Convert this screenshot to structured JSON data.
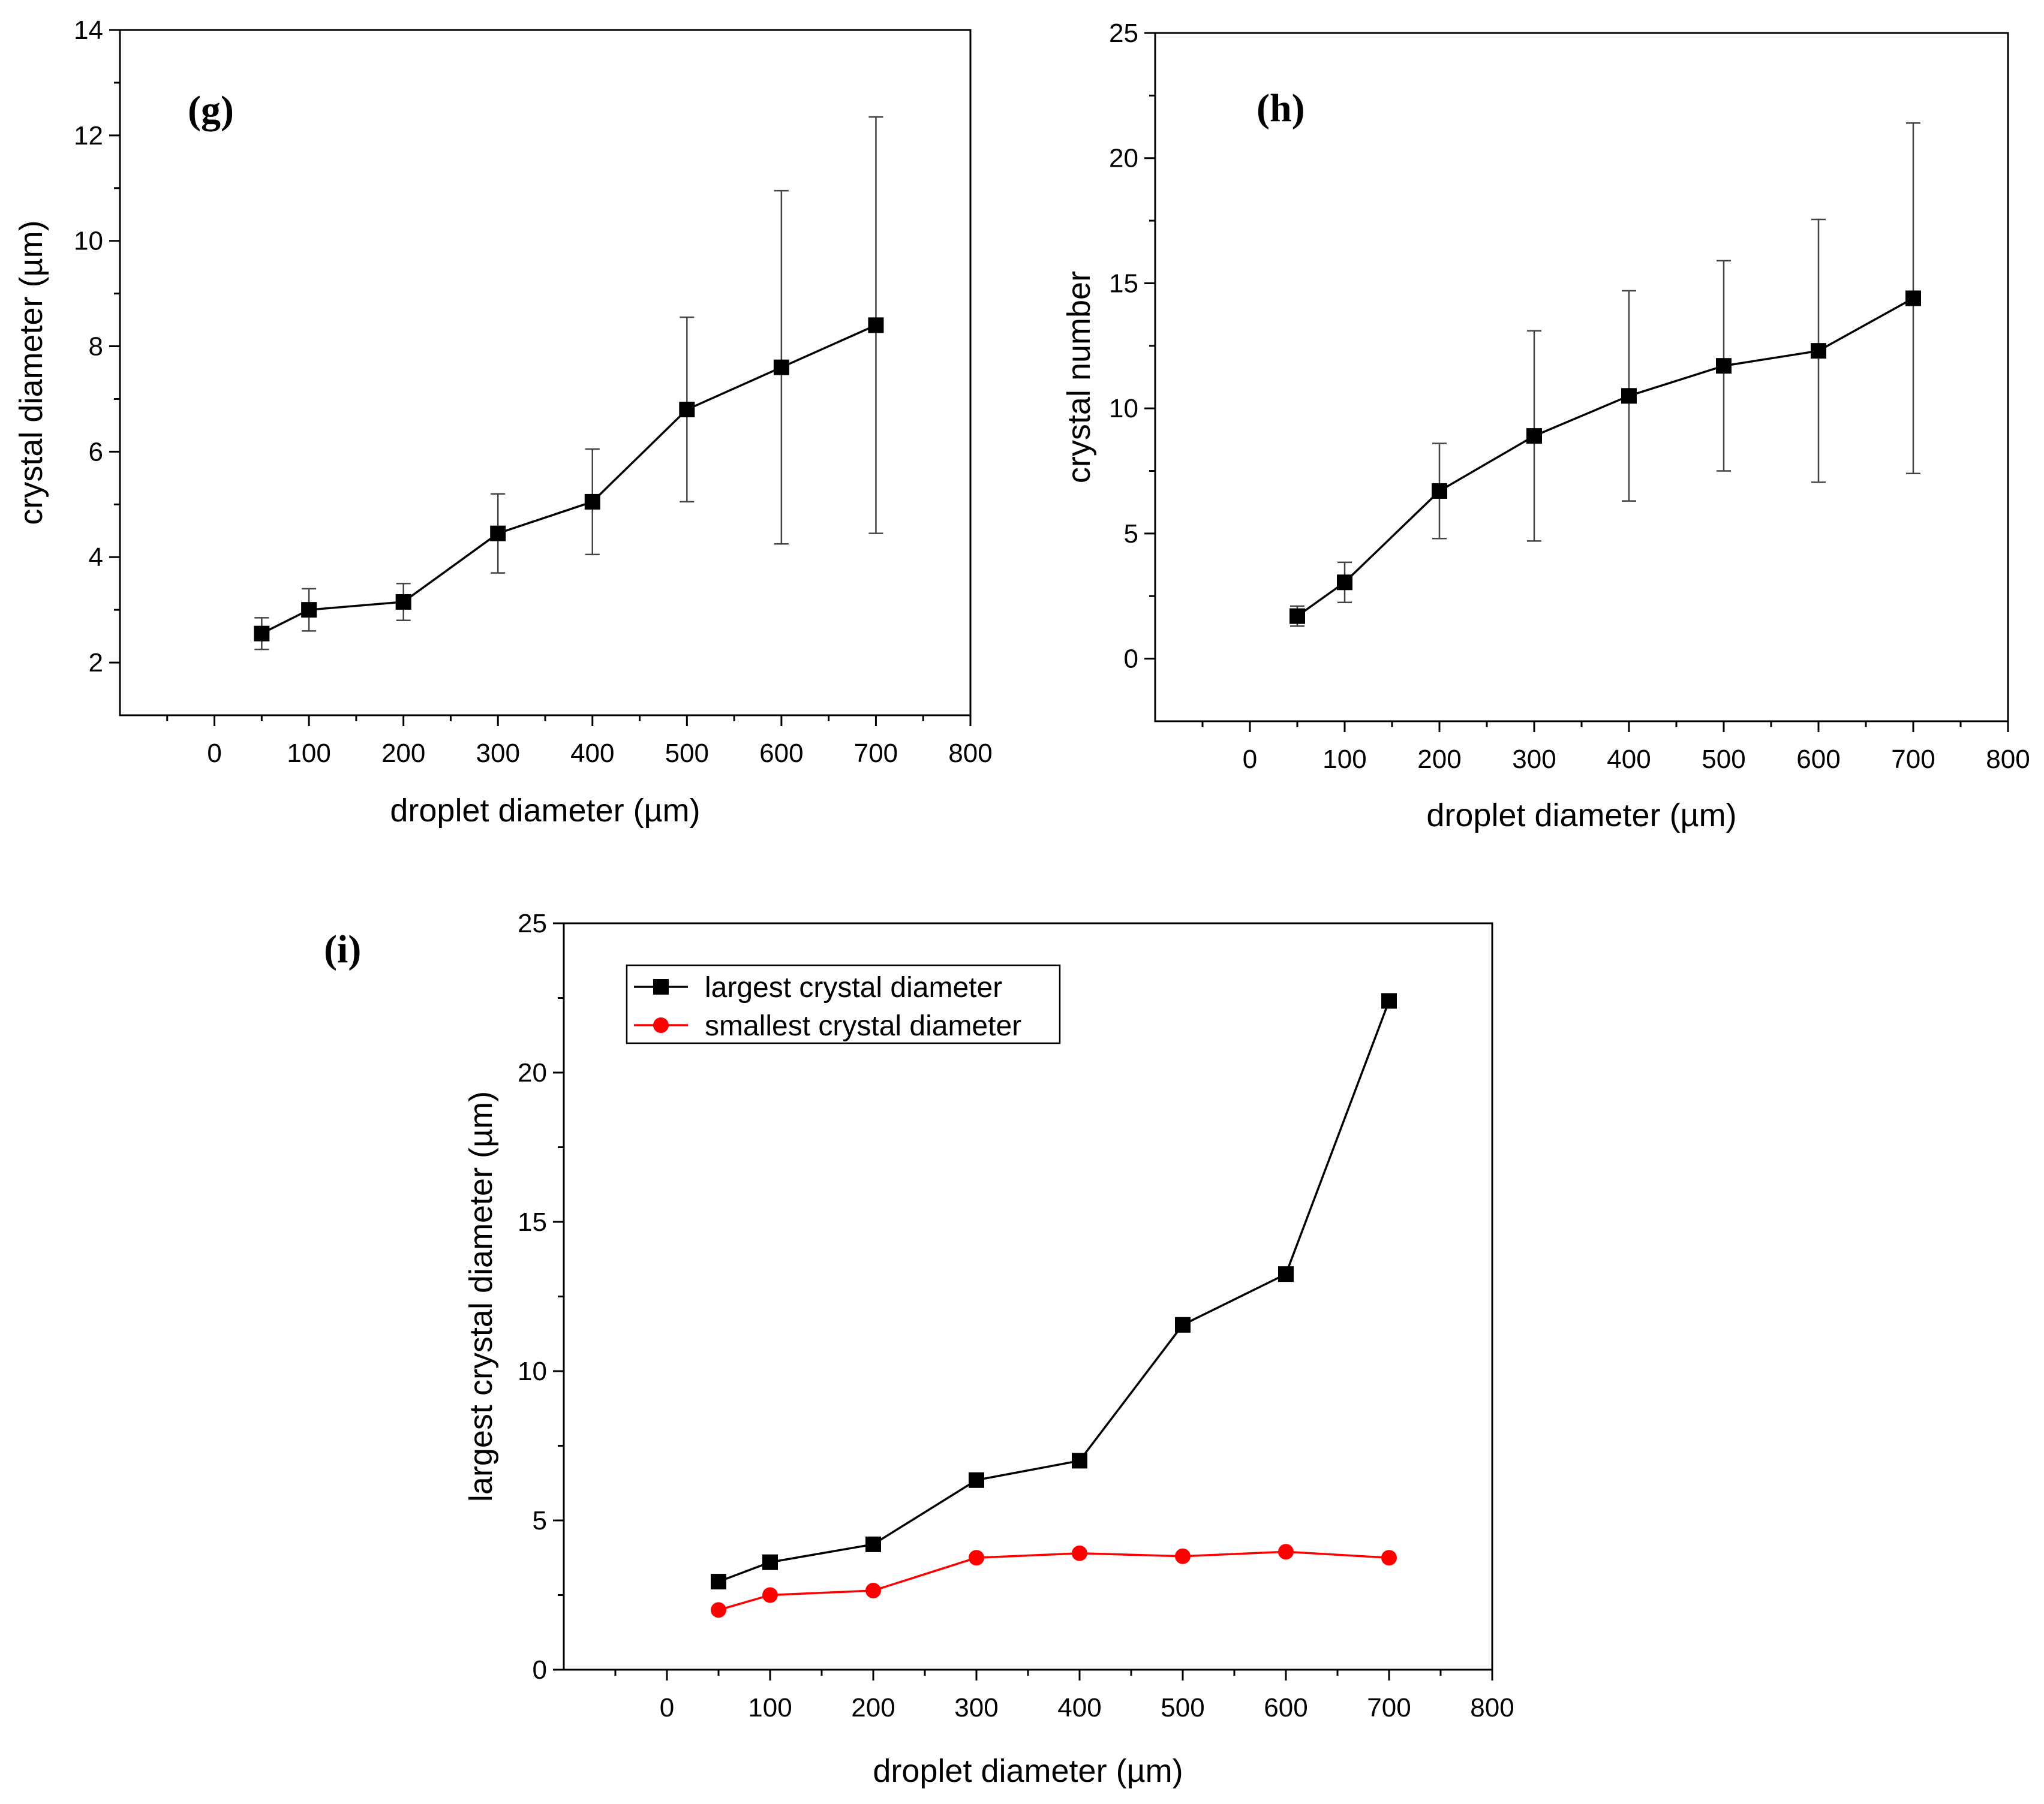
{
  "chart_data": [
    {
      "type": "line",
      "panel_label": "(g)",
      "xlabel": "droplet diameter (µm)",
      "ylabel": "crystal diameter (µm)",
      "xlim": [
        -100,
        800
      ],
      "ylim": [
        1,
        14
      ],
      "xticks": [
        "0",
        "100",
        "200",
        "300",
        "400",
        "500",
        "600",
        "700",
        "800"
      ],
      "yticks": [
        "2",
        "4",
        "6",
        "8",
        "10",
        "12",
        "14"
      ],
      "grid": false,
      "series": [
        {
          "marker": "square",
          "color": "#000000",
          "x": [
            50,
            100,
            200,
            300,
            400,
            500,
            600,
            700
          ],
          "y": [
            2.55,
            3.0,
            3.15,
            4.45,
            5.05,
            6.8,
            7.6,
            8.4
          ],
          "error": [
            0.3,
            0.4,
            0.35,
            0.75,
            1.0,
            1.75,
            3.35,
            3.95
          ]
        }
      ]
    },
    {
      "type": "line",
      "panel_label": "(h)",
      "xlabel": "droplet diameter (µm)",
      "ylabel": "crystal number",
      "xlim": [
        -100,
        800
      ],
      "ylim": [
        -2.5,
        25
      ],
      "xticks": [
        "0",
        "100",
        "200",
        "300",
        "400",
        "500",
        "600",
        "700",
        "800"
      ],
      "yticks": [
        "0",
        "5",
        "10",
        "15",
        "20",
        "25"
      ],
      "grid": false,
      "series": [
        {
          "marker": "square",
          "color": "#000000",
          "x": [
            50,
            100,
            200,
            300,
            400,
            500,
            600,
            700
          ],
          "y": [
            1.7,
            3.05,
            6.7,
            8.9,
            10.5,
            11.7,
            12.3,
            14.4
          ],
          "error": [
            0.4,
            0.8,
            1.9,
            4.2,
            4.2,
            4.2,
            5.25,
            7.0
          ]
        }
      ]
    },
    {
      "type": "line",
      "panel_label": "(i)",
      "xlabel": "droplet diameter (µm)",
      "ylabel": "largest crystal diameter (µm)",
      "xlim": [
        -100,
        800
      ],
      "ylim": [
        0,
        25
      ],
      "xticks": [
        "0",
        "100",
        "200",
        "300",
        "400",
        "500",
        "600",
        "700",
        "800"
      ],
      "yticks": [
        "0",
        "5",
        "10",
        "15",
        "20",
        "25"
      ],
      "grid": false,
      "legend_position": "top-left",
      "series": [
        {
          "name": "largest crystal diameter",
          "marker": "square",
          "color": "#000000",
          "x": [
            50,
            100,
            200,
            300,
            400,
            500,
            600,
            700
          ],
          "y": [
            2.95,
            3.6,
            4.2,
            6.35,
            7.0,
            11.55,
            13.25,
            22.4
          ]
        },
        {
          "name": "smallest crystal diameter",
          "marker": "circle",
          "color": "#ff0000",
          "x": [
            50,
            100,
            200,
            300,
            400,
            500,
            600,
            700
          ],
          "y": [
            2.0,
            2.5,
            2.65,
            3.75,
            3.9,
            3.8,
            3.95,
            3.75
          ]
        }
      ]
    }
  ]
}
